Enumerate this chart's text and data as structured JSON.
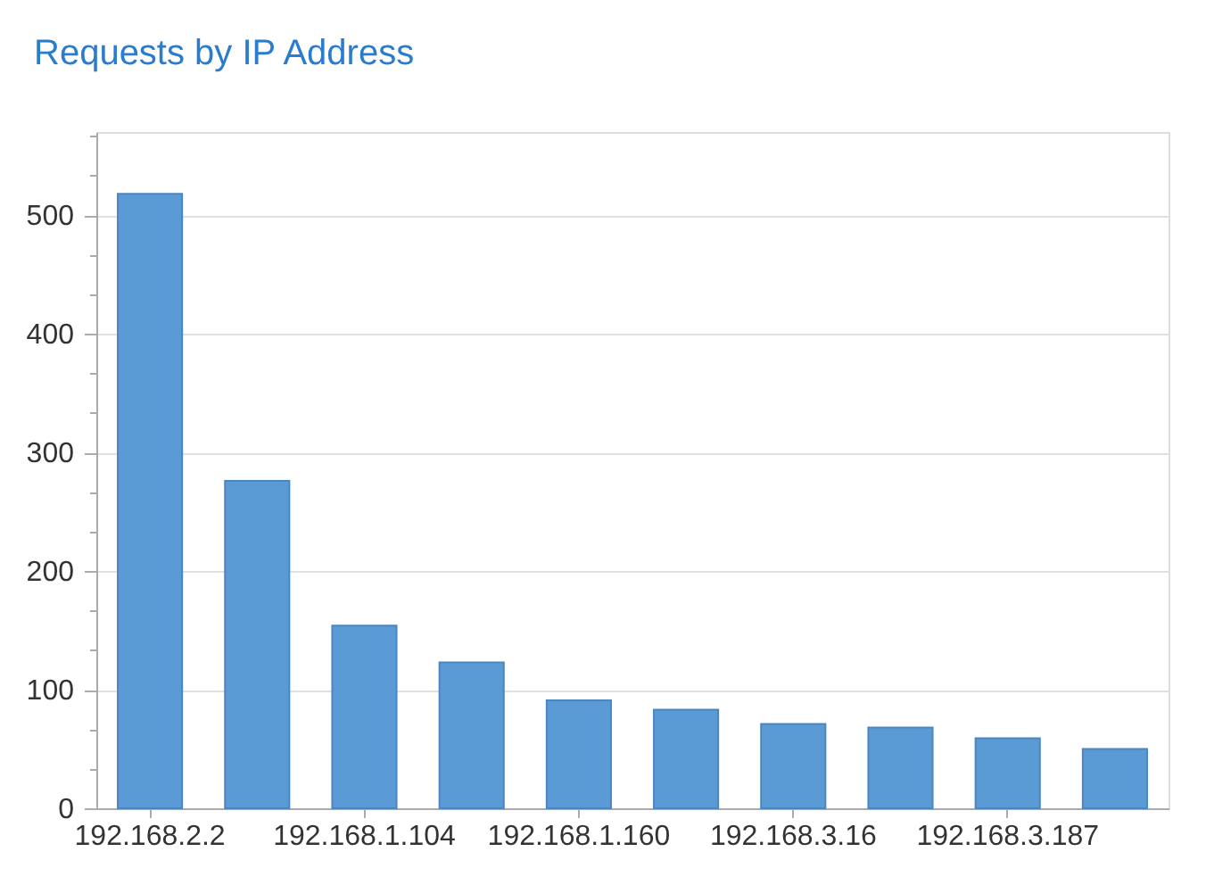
{
  "chart_data": {
    "type": "bar",
    "title": "Requests by IP Address",
    "categories": [
      "192.168.2.2",
      null,
      "192.168.1.104",
      null,
      "192.168.1.160",
      null,
      "192.168.3.16",
      null,
      "192.168.3.187",
      null
    ],
    "values": [
      518,
      276,
      154,
      123,
      91,
      83,
      71,
      68,
      59,
      50
    ],
    "color": "#5b9bd5",
    "ylim": [
      0,
      570
    ],
    "yticks": [
      0,
      {
        "value": 33.3,
        "label": null
      },
      {
        "value": 66.7,
        "label": null
      },
      100,
      {
        "value": 133.3,
        "label": null
      },
      {
        "value": 166.7,
        "label": null
      },
      200,
      {
        "value": 233.3,
        "label": null
      },
      {
        "value": 266.7,
        "label": null
      },
      300,
      {
        "value": 333.3,
        "label": null
      },
      {
        "value": 366.7,
        "label": null
      },
      400,
      {
        "value": 433.3,
        "label": null
      },
      {
        "value": 466.7,
        "label": null
      },
      500,
      {
        "value": 533.3,
        "label": null
      },
      {
        "value": 566.7,
        "label": null
      }
    ],
    "grid": "y"
  }
}
